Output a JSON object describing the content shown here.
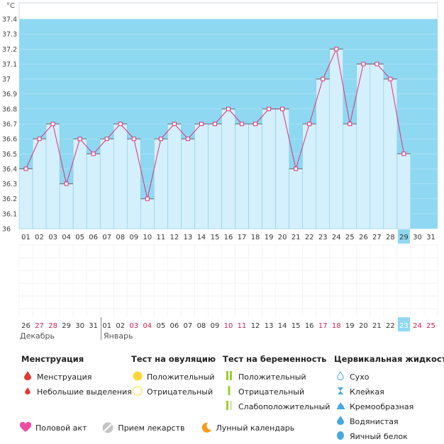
{
  "chart_data": {
    "type": "line",
    "unit_label": "°C",
    "ylim": [
      36,
      37.4
    ],
    "y_ticks": [
      "36",
      "36.1",
      "36.2",
      "36.3",
      "36.4",
      "36.5",
      "36.6",
      "36.7",
      "36.8",
      "36.9",
      "37",
      "37.1",
      "37.2",
      "37.3",
      "37.4"
    ],
    "cycle_days": [
      "01",
      "02",
      "03",
      "04",
      "05",
      "06",
      "07",
      "08",
      "09",
      "10",
      "11",
      "12",
      "13",
      "14",
      "15",
      "16",
      "17",
      "18",
      "19",
      "20",
      "21",
      "22",
      "23",
      "24",
      "25",
      "26",
      "27",
      "28",
      "29",
      "30",
      "31"
    ],
    "dates": [
      "26",
      "27",
      "28",
      "29",
      "30",
      "31",
      "01",
      "02",
      "03",
      "04",
      "05",
      "06",
      "07",
      "08",
      "09",
      "10",
      "11",
      "12",
      "13",
      "14",
      "15",
      "16",
      "17",
      "18",
      "19",
      "20",
      "21",
      "22",
      "23",
      "24",
      "25"
    ],
    "date_weekend": [
      false,
      true,
      true,
      false,
      false,
      false,
      false,
      false,
      true,
      true,
      false,
      false,
      false,
      false,
      false,
      true,
      true,
      false,
      false,
      false,
      false,
      false,
      true,
      true,
      false,
      false,
      false,
      false,
      false,
      true,
      true
    ],
    "months": [
      "Декабрь",
      "Январь"
    ],
    "temperatures": [
      36.4,
      36.6,
      36.7,
      36.3,
      36.6,
      36.5,
      36.6,
      36.7,
      36.6,
      36.2,
      36.6,
      36.7,
      36.6,
      36.7,
      36.7,
      36.8,
      36.7,
      36.7,
      36.8,
      36.8,
      36.4,
      36.7,
      37.0,
      37.2,
      36.7,
      37.1,
      37.1,
      37.0,
      36.5,
      null,
      null
    ],
    "today_index": 28,
    "colors": {
      "sky": "#8fd8f2",
      "bar": "#d4f0fc",
      "bar_edge": "#7cc6ea",
      "line": "#e0307a",
      "today": "#8fd8f2",
      "weekend": "#d0204f"
    }
  },
  "legend": {
    "menstruation": {
      "title": "Менструация",
      "items": [
        {
          "label": "Менструация",
          "icon": "drop-red-icon"
        },
        {
          "label": "Небольшие выделения",
          "icon": "small-drop-red-icon"
        }
      ]
    },
    "ovulation": {
      "title": "Тест на овуляцию",
      "items": [
        {
          "label": "Положительный",
          "icon": "circle-yellow-icon"
        },
        {
          "label": "Отрицательный",
          "icon": "circle-outline-icon"
        }
      ]
    },
    "pregnancy": {
      "title": "Тест на беременность",
      "items": [
        {
          "label": "Положительный",
          "icon": "double-line-icon"
        },
        {
          "label": "Отрицательный",
          "icon": "single-line-icon"
        },
        {
          "label": "Слабоположительный",
          "icon": "faint-line-icon"
        }
      ]
    },
    "cervical": {
      "title": "Цервикальная жидкость",
      "items": [
        {
          "label": "Сухо",
          "icon": "drop-outline-icon"
        },
        {
          "label": "Клейкая",
          "icon": "sticky-icon"
        },
        {
          "label": "Кремообразная",
          "icon": "creamy-icon"
        },
        {
          "label": "Водянистая",
          "icon": "watery-drop-icon"
        },
        {
          "label": "Яичный белок",
          "icon": "egg-white-icon"
        }
      ]
    },
    "bottom": [
      {
        "label": "Половой акт",
        "icon": "heart-icon"
      },
      {
        "label": "Прием лекарств",
        "icon": "pill-icon"
      },
      {
        "label": "Лунный календарь",
        "icon": "moon-icon"
      }
    ]
  }
}
